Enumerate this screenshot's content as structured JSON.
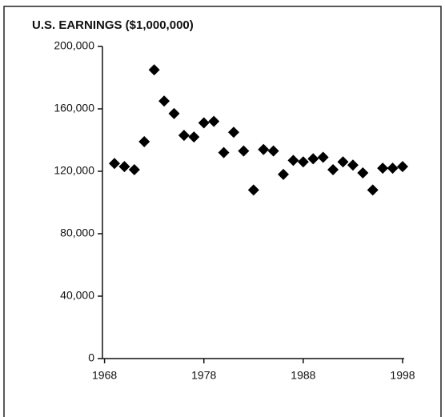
{
  "chart_data": {
    "type": "scatter",
    "title": "U.S. EARNINGS ($1,000,000)",
    "x": [
      1969,
      1970,
      1971,
      1972,
      1973,
      1974,
      1975,
      1976,
      1977,
      1978,
      1979,
      1980,
      1981,
      1982,
      1983,
      1984,
      1985,
      1986,
      1987,
      1988,
      1989,
      1990,
      1991,
      1992,
      1993,
      1994,
      1995,
      1996,
      1997,
      1998
    ],
    "values": [
      125000,
      123000,
      121000,
      139000,
      185000,
      165000,
      157000,
      143000,
      142000,
      151000,
      152000,
      132000,
      145000,
      133000,
      108000,
      134000,
      133000,
      118000,
      127000,
      126000,
      128000,
      129000,
      121000,
      126000,
      124000,
      119000,
      108000,
      122000,
      122000,
      123000
    ],
    "color": "#000000",
    "xlim": [
      1968,
      1998
    ],
    "xticks": [
      1968,
      1978,
      1988,
      1998
    ],
    "ylim": [
      0,
      200000
    ],
    "yticks": [
      0,
      {
        "value": 40000,
        "label": "40,000"
      },
      {
        "value": 80000,
        "label": "80,000"
      },
      {
        "value": 120000,
        "label": "120,000"
      },
      {
        "value": 160000,
        "label": "160,000"
      },
      {
        "value": 200000,
        "label": "200,000"
      }
    ],
    "grid": false
  }
}
